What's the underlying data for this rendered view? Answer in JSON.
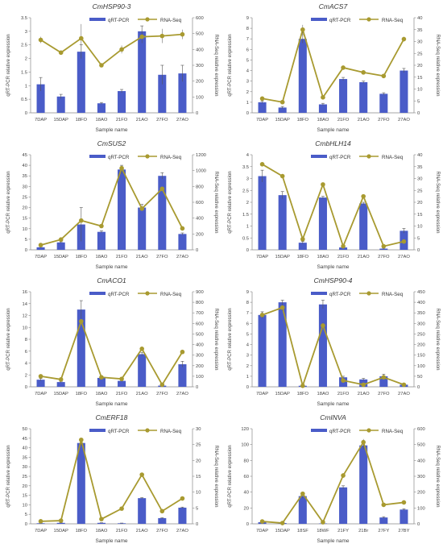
{
  "figure": {
    "legend_bar": "qRT-PCR",
    "legend_line": "RNA-Seq"
  },
  "colors": {
    "bar": "#4a5cc8",
    "line": "#a89a30",
    "marker": "#a89a30",
    "error": "#555555"
  },
  "chart_data": [
    {
      "type": "bar",
      "title": "CmHSP90-3",
      "xlabel": "Sample name",
      "ylabel": "qRT-PCR relative expression",
      "y2label": "RNA-Seq relative expression",
      "categories": [
        "7DAP",
        "15DAP",
        "18FO",
        "18AO",
        "21FO",
        "21AO",
        "27FO",
        "27AO"
      ],
      "ylim": [
        0,
        3.5
      ],
      "yticks": [
        "0",
        "0.5",
        "1",
        "1.5",
        "2",
        "2.5",
        "3",
        "3.5"
      ],
      "y2lim": [
        0,
        600
      ],
      "y2ticks": [
        "0",
        "100",
        "200",
        "300",
        "400",
        "500",
        "600"
      ],
      "series": [
        {
          "name": "qRT-PCR",
          "kind": "bar",
          "values": [
            1.05,
            0.6,
            2.25,
            0.35,
            0.8,
            3.0,
            1.4,
            1.45
          ],
          "errors": [
            0.25,
            0.08,
            0.25,
            0.03,
            0.06,
            0.2,
            0.35,
            0.3
          ]
        },
        {
          "name": "RNA-Seq",
          "kind": "line",
          "values": [
            460,
            380,
            470,
            300,
            400,
            480,
            485,
            495
          ],
          "errors": [
            20,
            10,
            90,
            10,
            25,
            40,
            45,
            30
          ]
        }
      ],
      "legend": "top-right",
      "grid": false
    },
    {
      "type": "bar",
      "title": "CmACS7",
      "xlabel": "Sample name",
      "ylabel": "qRT-PCR relative expression",
      "y2label": "RNA-Seq relative expression",
      "categories": [
        "7DAP",
        "15DAP",
        "18FO",
        "18AO",
        "21FO",
        "21AO",
        "27FO",
        "27AO"
      ],
      "ylim": [
        0,
        9
      ],
      "yticks": [
        "0",
        "1",
        "2",
        "3",
        "4",
        "5",
        "6",
        "7",
        "8",
        "9"
      ],
      "y2lim": [
        0,
        40
      ],
      "y2ticks": [
        "0",
        "5",
        "10",
        "15",
        "20",
        "25",
        "30",
        "35",
        "40"
      ],
      "series": [
        {
          "name": "qRT-PCR",
          "kind": "bar",
          "values": [
            1.0,
            0.5,
            7.0,
            0.8,
            3.2,
            2.9,
            1.8,
            4.0
          ],
          "errors": [
            0.1,
            0.1,
            0.4,
            0.1,
            0.15,
            0.1,
            0.1,
            0.2
          ]
        },
        {
          "name": "RNA-Seq",
          "kind": "line",
          "values": [
            6,
            4.5,
            35,
            6.5,
            19,
            17,
            15.5,
            31
          ],
          "errors": [
            0.5,
            0.5,
            2,
            0.5,
            0.5,
            0.5,
            0.5,
            1
          ]
        }
      ],
      "legend": "top-right",
      "grid": false
    },
    {
      "type": "bar",
      "title": "CmSUS2",
      "xlabel": "Sample name",
      "ylabel": "qRT-PCR relative expression",
      "y2label": "RNA-Seq relative expression",
      "categories": [
        "7DAP",
        "15DAP",
        "18FO",
        "18AO",
        "21FO",
        "21AO",
        "27FO",
        "27AO"
      ],
      "ylim": [
        0,
        45
      ],
      "yticks": [
        "0",
        "5",
        "10",
        "15",
        "20",
        "25",
        "30",
        "35",
        "40",
        "45"
      ],
      "y2lim": [
        0,
        1200
      ],
      "y2ticks": [
        "0",
        "200",
        "400",
        "600",
        "800",
        "1000",
        "1200"
      ],
      "series": [
        {
          "name": "qRT-PCR",
          "kind": "bar",
          "values": [
            1.2,
            3.5,
            12,
            8.5,
            38,
            20,
            35,
            7.5
          ],
          "errors": [
            0.2,
            0.3,
            8,
            0.5,
            2,
            1.5,
            1.5,
            0.5
          ]
        },
        {
          "name": "RNA-Seq",
          "kind": "line",
          "values": [
            60,
            130,
            370,
            300,
            1030,
            520,
            770,
            270
          ],
          "errors": [
            5,
            10,
            20,
            15,
            30,
            20,
            25,
            15
          ]
        }
      ],
      "legend": "top-right",
      "grid": false
    },
    {
      "type": "bar",
      "title": "CmbHLH14",
      "xlabel": "Sample name",
      "ylabel": "qRT-PCR relative expression",
      "y2label": "RNA-Seq relative expression",
      "categories": [
        "7DAP",
        "15DAP",
        "18FO",
        "18AO",
        "21FO",
        "21AO",
        "27FO",
        "27AO"
      ],
      "ylim": [
        0,
        4
      ],
      "yticks": [
        "0",
        "0.5",
        "1",
        "1.5",
        "2",
        "2.5",
        "3",
        "3.5",
        "4"
      ],
      "y2lim": [
        0,
        40
      ],
      "y2ticks": [
        "0",
        "5",
        "10",
        "15",
        "20",
        "25",
        "30",
        "35",
        "40"
      ],
      "series": [
        {
          "name": "qRT-PCR",
          "kind": "bar",
          "values": [
            3.1,
            2.3,
            0.3,
            2.2,
            0.1,
            1.95,
            0.05,
            0.8
          ],
          "errors": [
            0.25,
            0.15,
            0.05,
            0.05,
            0.02,
            0.05,
            0.02,
            0.1
          ]
        },
        {
          "name": "RNA-Seq",
          "kind": "line",
          "values": [
            36,
            31,
            4.5,
            27.5,
            1.5,
            22.5,
            1.5,
            3.5
          ],
          "errors": [
            0.5,
            0.5,
            0.5,
            0.5,
            0.3,
            0.5,
            0.3,
            0.5
          ]
        }
      ],
      "legend": "top-right",
      "grid": false
    },
    {
      "type": "bar",
      "title": "CmACO1",
      "xlabel": "Sample name",
      "ylabel": "qRT-PCR relative expression",
      "y2label": "RNA-Seq relative expression",
      "categories": [
        "7DAP",
        "15DAP",
        "18FO",
        "18AO",
        "21FO",
        "21AO",
        "27FO",
        "27AO"
      ],
      "ylim": [
        0,
        16
      ],
      "yticks": [
        "0",
        "2",
        "4",
        "6",
        "8",
        "10",
        "12",
        "14",
        "16"
      ],
      "y2lim": [
        0,
        900
      ],
      "y2ticks": [
        "0",
        "100",
        "200",
        "300",
        "400",
        "500",
        "600",
        "700",
        "800",
        "900"
      ],
      "series": [
        {
          "name": "qRT-PCR",
          "kind": "bar",
          "values": [
            1.2,
            0.8,
            13,
            1.5,
            1.0,
            5.5,
            0.2,
            3.8
          ],
          "errors": [
            0.2,
            0.1,
            1.5,
            0.2,
            0.1,
            0.3,
            0.05,
            0.5
          ]
        },
        {
          "name": "RNA-Seq",
          "kind": "line",
          "values": [
            100,
            70,
            620,
            90,
            75,
            360,
            20,
            330
          ],
          "errors": [
            10,
            5,
            20,
            5,
            5,
            15,
            3,
            15
          ]
        }
      ],
      "legend": "top-right",
      "grid": false
    },
    {
      "type": "bar",
      "title": "CmHSP90-4",
      "xlabel": "Sample name",
      "ylabel": "qRT-PCR relative expression",
      "y2label": "RNA-Seq relative expression",
      "categories": [
        "7DAP",
        "15DAP",
        "18FO",
        "18AO",
        "21FO",
        "21AO",
        "27FO",
        "27AO"
      ],
      "ylim": [
        0,
        9
      ],
      "yticks": [
        "0",
        "1",
        "2",
        "3",
        "4",
        "5",
        "6",
        "7",
        "8",
        "9"
      ],
      "y2lim": [
        0,
        450
      ],
      "y2ticks": [
        "0",
        "50",
        "100",
        "150",
        "200",
        "250",
        "300",
        "350",
        "400",
        "450"
      ],
      "series": [
        {
          "name": "qRT-PCR",
          "kind": "bar",
          "values": [
            6.8,
            8.0,
            0.1,
            7.8,
            0.9,
            0.7,
            1.0,
            0.2
          ],
          "errors": [
            0.3,
            0.2,
            0.05,
            0.4,
            0.1,
            0.1,
            0.2,
            0.05
          ]
        },
        {
          "name": "RNA-Seq",
          "kind": "line",
          "values": [
            340,
            375,
            5,
            290,
            30,
            10,
            45,
            10
          ],
          "errors": [
            15,
            15,
            2,
            15,
            5,
            3,
            5,
            3
          ]
        }
      ],
      "legend": "top-right",
      "grid": false
    },
    {
      "type": "bar",
      "title": "CmERF18",
      "xlabel": "Sample name",
      "ylabel": "qRT-PCR relative expression",
      "y2label": "RNA-Seq relative expression",
      "categories": [
        "7DAP",
        "15DAP",
        "18FO",
        "18AO",
        "21FO",
        "21AO",
        "27FO",
        "27AO"
      ],
      "ylim": [
        0,
        50
      ],
      "yticks": [
        "0",
        "5",
        "10",
        "15",
        "20",
        "25",
        "30",
        "35",
        "40",
        "45",
        "50"
      ],
      "y2lim": [
        0,
        30
      ],
      "y2ticks": [
        "0",
        "5",
        "10",
        "15",
        "20",
        "25",
        "30"
      ],
      "series": [
        {
          "name": "qRT-PCR",
          "kind": "bar",
          "values": [
            0.3,
            0.5,
            42.5,
            0.5,
            0.3,
            13.5,
            3.0,
            8.5
          ],
          "errors": [
            0.1,
            0.1,
            1.5,
            0.1,
            0.1,
            0.3,
            0.2,
            0.3
          ]
        },
        {
          "name": "RNA-Seq",
          "kind": "line",
          "values": [
            0.8,
            1.0,
            26.5,
            1.5,
            4.8,
            15.5,
            4.0,
            8.0
          ],
          "errors": [
            0.1,
            0.1,
            0.5,
            0.1,
            0.2,
            0.3,
            0.2,
            0.3
          ]
        }
      ],
      "legend": "top-right",
      "grid": false
    },
    {
      "type": "bar",
      "title": "CmINVA",
      "xlabel": "Sample name",
      "ylabel": "qRT-PCR relative expression",
      "y2label": "RNA-Seq relative expression",
      "categories": [
        "7DAP",
        "15DAP",
        "18SF",
        "18WF",
        "21FY",
        "21Br",
        "27FY",
        "27BY"
      ],
      "ylim": [
        0,
        120
      ],
      "yticks": [
        "0",
        "20",
        "40",
        "60",
        "80",
        "100",
        "120"
      ],
      "y2lim": [
        0,
        600
      ],
      "y2ticks": [
        "0",
        "100",
        "200",
        "300",
        "400",
        "500",
        "600"
      ],
      "series": [
        {
          "name": "qRT-PCR",
          "kind": "bar",
          "values": [
            2,
            1,
            35,
            0.5,
            46,
            99,
            8,
            18
          ],
          "errors": [
            0.5,
            0.3,
            3,
            0.2,
            2,
            5,
            1,
            1
          ]
        },
        {
          "name": "RNA-Seq",
          "kind": "line",
          "values": [
            15,
            5,
            190,
            10,
            305,
            515,
            120,
            135
          ],
          "errors": [
            3,
            2,
            10,
            2,
            15,
            20,
            5,
            5
          ]
        }
      ],
      "legend": "top-right",
      "grid": false
    }
  ]
}
